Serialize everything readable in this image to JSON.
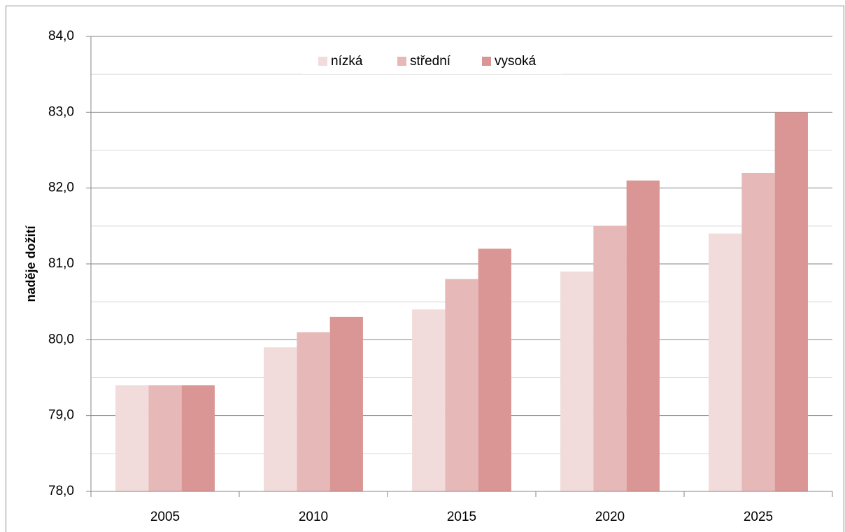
{
  "chart_data": {
    "type": "bar",
    "y_label": "naděje dožití",
    "categories": [
      "2005",
      "2010",
      "2015",
      "2020",
      "2025"
    ],
    "series": [
      {
        "name": "nízká",
        "color": "#f2dcdb",
        "values": [
          79.4,
          79.9,
          80.4,
          80.9,
          81.4
        ]
      },
      {
        "name": "střední",
        "color": "#e6b9b8",
        "values": [
          79.4,
          80.1,
          80.8,
          81.5,
          82.2
        ]
      },
      {
        "name": "vysoká",
        "color": "#d99694",
        "values": [
          79.4,
          80.3,
          81.2,
          82.1,
          83.0
        ]
      }
    ],
    "ylim": [
      78,
      84
    ],
    "yticks": [
      {
        "value": 78,
        "label": "78,0"
      },
      {
        "value": 79,
        "label": "79,0"
      },
      {
        "value": 80,
        "label": "80,0"
      },
      {
        "value": 81,
        "label": "81,0"
      },
      {
        "value": 82,
        "label": "82,0"
      },
      {
        "value": 83,
        "label": "83,0"
      },
      {
        "value": 84,
        "label": "84,0"
      }
    ],
    "grid": true,
    "minor_grid": true,
    "legend": "top"
  }
}
